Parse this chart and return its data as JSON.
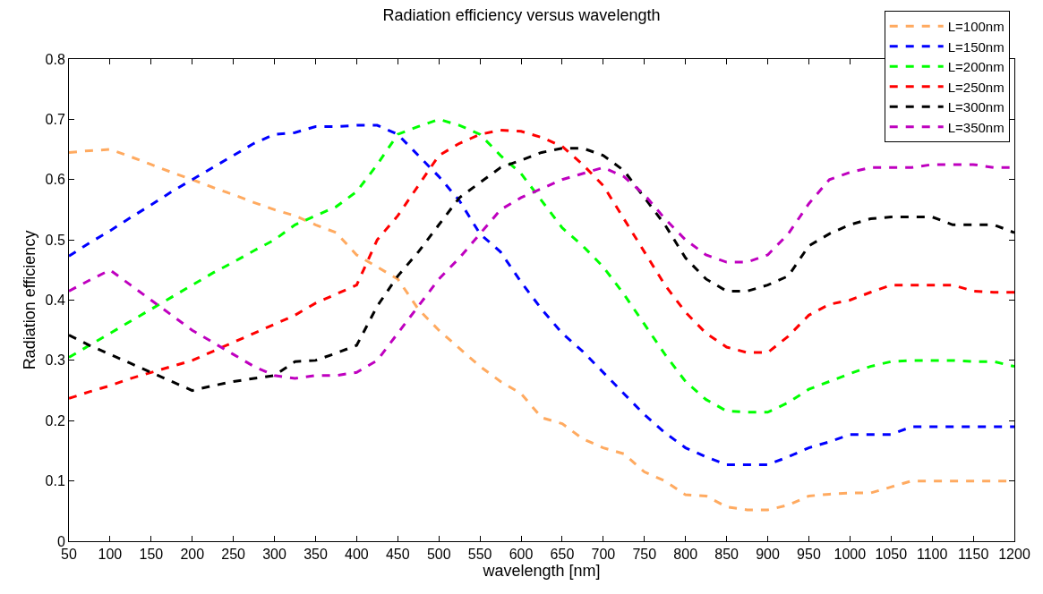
{
  "chart_data": {
    "type": "line",
    "title": "Radiation efficiency versus wavelength",
    "xlabel": "wavelength [nm]",
    "ylabel": "Radiation efficiency",
    "x": [
      50,
      75,
      100,
      125,
      150,
      175,
      200,
      225,
      250,
      275,
      300,
      325,
      350,
      375,
      400,
      425,
      450,
      475,
      500,
      525,
      550,
      575,
      600,
      625,
      650,
      675,
      700,
      725,
      750,
      775,
      800,
      825,
      850,
      875,
      900,
      925,
      950,
      975,
      1000,
      1025,
      1050,
      1075,
      1100,
      1125,
      1150,
      1175,
      1200
    ],
    "xlim": [
      50,
      1200
    ],
    "xticks": [
      50,
      100,
      150,
      200,
      250,
      300,
      350,
      400,
      450,
      500,
      550,
      600,
      650,
      700,
      750,
      800,
      850,
      900,
      950,
      1000,
      1050,
      1100,
      1150,
      1200
    ],
    "ylim": [
      0,
      0.8
    ],
    "yticks": [
      0,
      0.1,
      0.2,
      0.3,
      0.4,
      0.5,
      0.6,
      0.7,
      0.8
    ],
    "legend": "top right",
    "line_style": "dashed",
    "marker": "none",
    "series": [
      {
        "name": "L=100nm",
        "color": "#ffaa60",
        "values": [
          0.645,
          0.648,
          0.65,
          0.638,
          0.625,
          0.612,
          0.6,
          0.587,
          0.575,
          0.562,
          0.55,
          0.54,
          0.525,
          0.512,
          0.475,
          0.455,
          0.435,
          0.385,
          0.35,
          0.32,
          0.29,
          0.265,
          0.245,
          0.205,
          0.195,
          0.17,
          0.155,
          0.145,
          0.115,
          0.1,
          0.077,
          0.075,
          0.057,
          0.052,
          0.052,
          0.06,
          0.075,
          0.078,
          0.08,
          0.08,
          0.09,
          0.1,
          0.1,
          0.1,
          0.1,
          0.1,
          0.1
        ]
      },
      {
        "name": "L=150nm",
        "color": "#0000ff",
        "values": [
          0.473,
          0.495,
          0.515,
          0.537,
          0.558,
          0.58,
          0.6,
          0.62,
          0.64,
          0.66,
          0.675,
          0.678,
          0.688,
          0.688,
          0.69,
          0.69,
          0.675,
          0.64,
          0.605,
          0.565,
          0.51,
          0.48,
          0.43,
          0.385,
          0.345,
          0.315,
          0.28,
          0.245,
          0.21,
          0.18,
          0.155,
          0.14,
          0.127,
          0.127,
          0.127,
          0.14,
          0.155,
          0.165,
          0.177,
          0.177,
          0.177,
          0.19,
          0.19,
          0.19,
          0.19,
          0.19,
          0.19
        ]
      },
      {
        "name": "L=200nm",
        "color": "#00ff00",
        "values": [
          0.305,
          0.325,
          0.345,
          0.365,
          0.385,
          0.405,
          0.425,
          0.445,
          0.463,
          0.482,
          0.5,
          0.525,
          0.54,
          0.555,
          0.58,
          0.625,
          0.675,
          0.688,
          0.7,
          0.69,
          0.675,
          0.64,
          0.61,
          0.565,
          0.52,
          0.49,
          0.455,
          0.41,
          0.36,
          0.31,
          0.265,
          0.235,
          0.216,
          0.214,
          0.214,
          0.23,
          0.252,
          0.265,
          0.278,
          0.29,
          0.298,
          0.3,
          0.3,
          0.3,
          0.298,
          0.298,
          0.29
        ]
      },
      {
        "name": "L=250nm",
        "color": "#ff0000",
        "values": [
          0.237,
          0.248,
          0.258,
          0.27,
          0.28,
          0.29,
          0.3,
          0.315,
          0.33,
          0.345,
          0.36,
          0.375,
          0.395,
          0.41,
          0.425,
          0.5,
          0.54,
          0.59,
          0.64,
          0.66,
          0.675,
          0.682,
          0.68,
          0.67,
          0.655,
          0.625,
          0.59,
          0.535,
          0.48,
          0.425,
          0.38,
          0.345,
          0.322,
          0.313,
          0.313,
          0.34,
          0.375,
          0.393,
          0.4,
          0.413,
          0.425,
          0.425,
          0.425,
          0.425,
          0.415,
          0.413,
          0.413
        ]
      },
      {
        "name": "L=300nm",
        "color": "#000000",
        "values": [
          0.342,
          0.325,
          0.31,
          0.295,
          0.28,
          0.265,
          0.25,
          0.258,
          0.265,
          0.27,
          0.275,
          0.298,
          0.3,
          0.312,
          0.325,
          0.39,
          0.44,
          0.48,
          0.525,
          0.57,
          0.595,
          0.62,
          0.632,
          0.645,
          0.652,
          0.652,
          0.64,
          0.615,
          0.57,
          0.525,
          0.47,
          0.435,
          0.415,
          0.415,
          0.425,
          0.44,
          0.49,
          0.51,
          0.525,
          0.535,
          0.538,
          0.538,
          0.538,
          0.525,
          0.525,
          0.525,
          0.512
        ]
      },
      {
        "name": "L=350nm",
        "color": "#bf00bf",
        "values": [
          0.415,
          0.433,
          0.45,
          0.425,
          0.4,
          0.375,
          0.35,
          0.33,
          0.31,
          0.29,
          0.275,
          0.27,
          0.275,
          0.275,
          0.28,
          0.3,
          0.345,
          0.39,
          0.435,
          0.47,
          0.51,
          0.55,
          0.57,
          0.585,
          0.6,
          0.61,
          0.62,
          0.605,
          0.575,
          0.535,
          0.5,
          0.475,
          0.463,
          0.463,
          0.475,
          0.51,
          0.56,
          0.6,
          0.612,
          0.62,
          0.62,
          0.62,
          0.625,
          0.625,
          0.625,
          0.62,
          0.62
        ]
      }
    ]
  }
}
